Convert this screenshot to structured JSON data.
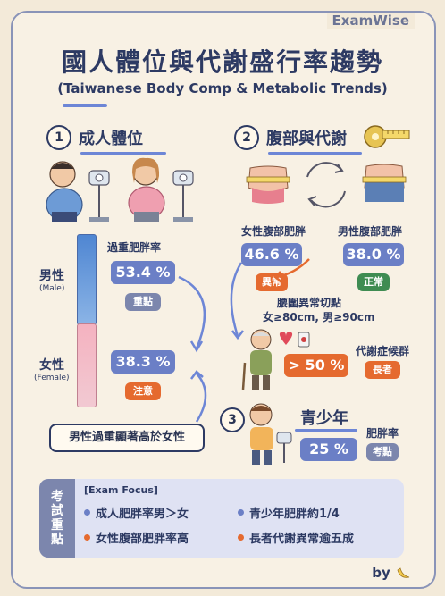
{
  "brand": "ExamWise",
  "title": "國人體位與代謝盛行率趨勢",
  "subtitle": "(Taiwanese Body Comp & Metabolic Trends)",
  "section1": {
    "num": "1",
    "title": "成人體位",
    "stat_label": "過重肥胖率",
    "male": {
      "label": "男性",
      "sub": "(Male)",
      "value": "53.4 %",
      "tag": "重點"
    },
    "female": {
      "label": "女性",
      "sub": "(Female)",
      "value": "38.3 %",
      "tag": "注意"
    },
    "note": "男性過重顯著高於女性"
  },
  "section2": {
    "num": "2",
    "title": "腹部與代謝",
    "female_label": "女性腹部肥胖",
    "female_value": "46.6 %",
    "female_tag": "異常",
    "male_label": "男性腹部肥胖",
    "male_value": "38.0 %",
    "male_tag": "正常",
    "cutoff_title": "腰圍異常切點",
    "cutoff_value": "女≥80cm, 男≥90cm",
    "metabolic_label": "代謝症候群",
    "metabolic_value": "> 50 %",
    "metabolic_tag": "長者"
  },
  "section3": {
    "num": "3",
    "title": "青少年",
    "label": "肥胖率",
    "value": "25 %",
    "tag": "考點"
  },
  "focus": {
    "side": [
      "考",
      "試",
      "重",
      "點"
    ],
    "title": "[Exam Focus]",
    "items": [
      "成人肥胖率男＞女",
      "青少年肥胖約1/4",
      "女性腹部肥胖率高",
      "長者代謝異常逾五成"
    ]
  },
  "footer": "by",
  "colors": {
    "blue": "#6b7fc6",
    "orange": "#e56a2f",
    "green": "#3f8c52",
    "navy": "#2d3a63"
  },
  "icons": [
    "scale-icon",
    "tape-measure-icon",
    "heart-icon",
    "blood-drop-icon",
    "cycle-arrows-icon",
    "banana-icon"
  ]
}
